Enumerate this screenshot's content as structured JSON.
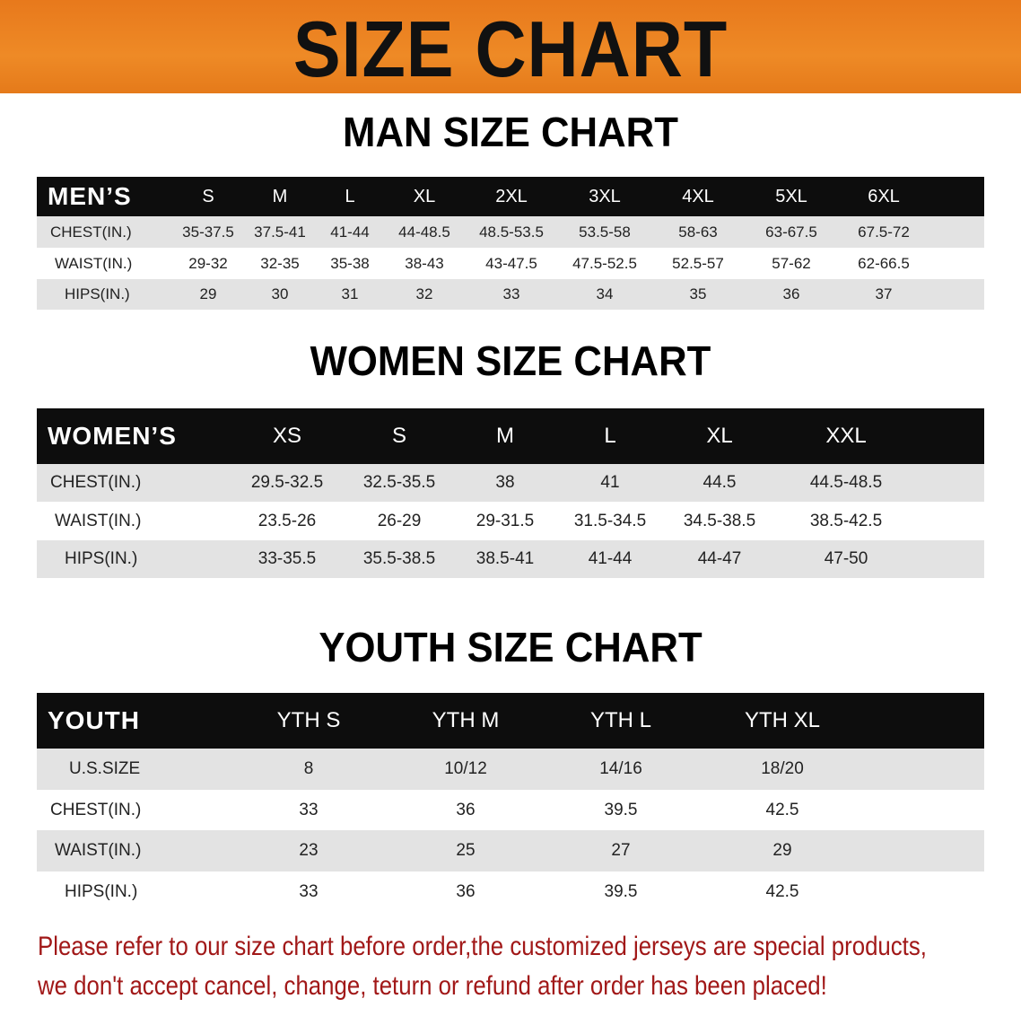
{
  "banner": {
    "title": "SIZE CHART"
  },
  "men": {
    "title": "MAN SIZE CHART",
    "header": "MEN’S",
    "sizes": [
      "S",
      "M",
      "L",
      "XL",
      "2XL",
      "3XL",
      "4XL",
      "5XL",
      "6XL"
    ],
    "rows": [
      {
        "label": "CHEST(IN.)",
        "values": [
          "35-37.5",
          "37.5-41",
          "41-44",
          "44-48.5",
          "48.5-53.5",
          "53.5-58",
          "58-63",
          "63-67.5",
          "67.5-72"
        ]
      },
      {
        "label": "WAIST(IN.)",
        "values": [
          "29-32",
          "32-35",
          "35-38",
          "38-43",
          "43-47.5",
          "47.5-52.5",
          "52.5-57",
          "57-62",
          "62-66.5"
        ]
      },
      {
        "label": "HIPS(IN.)",
        "values": [
          "29",
          "30",
          "31",
          "32",
          "33",
          "34",
          "35",
          "36",
          "37"
        ]
      }
    ]
  },
  "women": {
    "title": "WOMEN SIZE CHART",
    "header": "WOMEN’S",
    "sizes": [
      "XS",
      "S",
      "M",
      "L",
      "XL",
      "XXL"
    ],
    "rows": [
      {
        "label": "CHEST(IN.)",
        "values": [
          "29.5-32.5",
          "32.5-35.5",
          "38",
          "41",
          "44.5",
          "44.5-48.5"
        ]
      },
      {
        "label": "WAIST(IN.)",
        "values": [
          "23.5-26",
          "26-29",
          "29-31.5",
          "31.5-34.5",
          "34.5-38.5",
          "38.5-42.5"
        ]
      },
      {
        "label": "HIPS(IN.)",
        "values": [
          "33-35.5",
          "35.5-38.5",
          "38.5-41",
          "41-44",
          "44-47",
          "47-50"
        ]
      }
    ]
  },
  "youth": {
    "title": "YOUTH SIZE CHART",
    "header": "YOUTH",
    "sizes": [
      "YTH S",
      "YTH M",
      "YTH L",
      "YTH XL"
    ],
    "rows": [
      {
        "label": "U.S.SIZE",
        "values": [
          "8",
          "10/12",
          "14/16",
          "18/20"
        ]
      },
      {
        "label": "CHEST(IN.)",
        "values": [
          "33",
          "36",
          "39.5",
          "42.5"
        ]
      },
      {
        "label": "WAIST(IN.)",
        "values": [
          "23",
          "25",
          "27",
          "29"
        ]
      },
      {
        "label": "HIPS(IN.)",
        "values": [
          "33",
          "36",
          "39.5",
          "42.5"
        ]
      }
    ]
  },
  "note": {
    "line1": "Please refer to our size chart before order,the customized jerseys are special products,",
    "line2": "we don't accept cancel, change, teturn or refund after order has been placed!"
  },
  "colors": {
    "banner": "#ec8422",
    "header_row": "#0d0d0d",
    "stripe": "#e3e3e3",
    "note": "#a11818"
  },
  "chart_data": {
    "type": "table",
    "tables": [
      "men",
      "women",
      "youth"
    ]
  }
}
